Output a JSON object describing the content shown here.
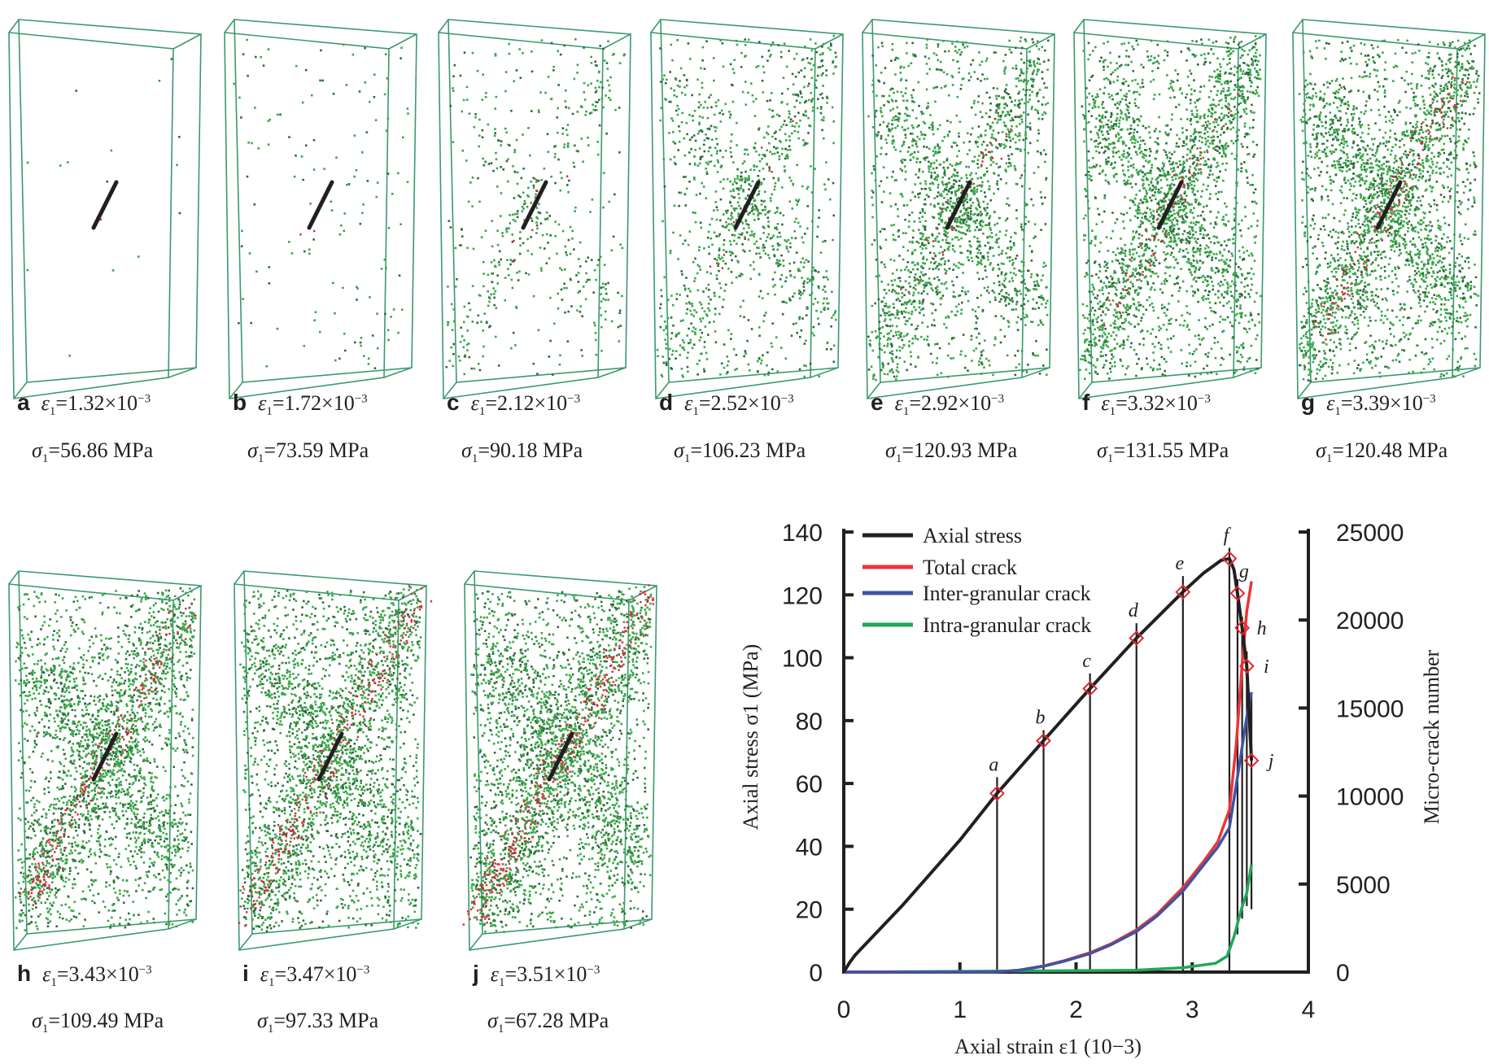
{
  "panels": [
    {
      "letter": "a",
      "strain": "1.32",
      "stress": "56.86 MPa"
    },
    {
      "letter": "b",
      "strain": "1.72",
      "stress": "73.59 MPa"
    },
    {
      "letter": "c",
      "strain": "2.12",
      "stress": "90.18 MPa"
    },
    {
      "letter": "d",
      "strain": "2.52",
      "stress": "106.23 MPa"
    },
    {
      "letter": "e",
      "strain": "2.92",
      "stress": "120.93 MPa"
    },
    {
      "letter": "f",
      "strain": "3.32",
      "stress": "131.55 MPa"
    },
    {
      "letter": "g",
      "strain": "3.39",
      "stress": "120.48 MPa"
    },
    {
      "letter": "h",
      "strain": "3.43",
      "stress": "109.49 MPa"
    },
    {
      "letter": "i",
      "strain": "3.47",
      "stress": "97.33 MPa"
    },
    {
      "letter": "j",
      "strain": "3.51",
      "stress": "67.28 MPa"
    }
  ],
  "caption_parts": {
    "eps": "ε",
    "sigma": "σ",
    "sub": "1",
    "eq": "=",
    "times10": "×10",
    "exp": "−3"
  },
  "colors": {
    "box": "#3a9a6e",
    "inter_dots": "#3aa64a",
    "intra_dots": "#d42a3a",
    "stress": "#231f20",
    "total": "#ee3338",
    "inter": "#3d54a3",
    "intra": "#22a65a",
    "marker": "#e0282e"
  },
  "chart_data": {
    "type": "line",
    "xlabel": "Axial strain ε1 (10−3)",
    "ylabel": "Axial stress σ1 (MPa)",
    "y2label": "Micro-crack number",
    "xlim": [
      0,
      4
    ],
    "ylim": [
      0,
      140
    ],
    "y2lim": [
      0,
      25000
    ],
    "xticks": [
      "0",
      "1",
      "2",
      "3",
      "4"
    ],
    "yticks": [
      "0",
      "20",
      "40",
      "60",
      "80",
      "100",
      "120",
      "140"
    ],
    "y2ticks": [
      "0",
      "5000",
      "10000",
      "15000",
      "20000",
      "25000"
    ],
    "grid": false,
    "legend_position": "top-left",
    "series": [
      {
        "name": "Axial stress",
        "axis": "left",
        "points": [
          [
            0,
            0
          ],
          [
            0.05,
            3
          ],
          [
            0.1,
            5.5
          ],
          [
            0.5,
            21
          ],
          [
            1.0,
            42
          ],
          [
            1.32,
            56.86
          ],
          [
            1.72,
            73.59
          ],
          [
            2.12,
            90.18
          ],
          [
            2.52,
            106.23
          ],
          [
            2.92,
            120.93
          ],
          [
            3.1,
            127
          ],
          [
            3.25,
            131
          ],
          [
            3.32,
            131.55
          ],
          [
            3.36,
            128
          ],
          [
            3.39,
            120.48
          ],
          [
            3.43,
            109.49
          ],
          [
            3.47,
            97.33
          ],
          [
            3.51,
            67.28
          ]
        ]
      },
      {
        "name": "Total crack",
        "axis": "right",
        "points": [
          [
            0,
            0
          ],
          [
            1.3,
            0
          ],
          [
            1.5,
            100
          ],
          [
            1.72,
            350
          ],
          [
            1.9,
            650
          ],
          [
            2.12,
            1100
          ],
          [
            2.3,
            1600
          ],
          [
            2.52,
            2400
          ],
          [
            2.7,
            3300
          ],
          [
            2.92,
            4800
          ],
          [
            3.1,
            6300
          ],
          [
            3.22,
            7400
          ],
          [
            3.32,
            9200
          ],
          [
            3.38,
            13000
          ],
          [
            3.43,
            17500
          ],
          [
            3.47,
            20500
          ],
          [
            3.51,
            22200
          ]
        ]
      },
      {
        "name": "Inter-granular crack",
        "axis": "right",
        "points": [
          [
            0,
            0
          ],
          [
            1.3,
            0
          ],
          [
            1.5,
            100
          ],
          [
            1.72,
            330
          ],
          [
            1.9,
            620
          ],
          [
            2.12,
            1050
          ],
          [
            2.3,
            1550
          ],
          [
            2.52,
            2300
          ],
          [
            2.7,
            3200
          ],
          [
            2.92,
            4600
          ],
          [
            3.1,
            6100
          ],
          [
            3.22,
            7100
          ],
          [
            3.32,
            8200
          ],
          [
            3.4,
            11500
          ],
          [
            3.47,
            14500
          ],
          [
            3.51,
            15900
          ]
        ]
      },
      {
        "name": "Intra-granular crack",
        "axis": "right",
        "points": [
          [
            0,
            0
          ],
          [
            2.5,
            100
          ],
          [
            2.92,
            250
          ],
          [
            3.2,
            500
          ],
          [
            3.3,
            900
          ],
          [
            3.36,
            2000
          ],
          [
            3.42,
            3500
          ],
          [
            3.47,
            4500
          ],
          [
            3.51,
            6100
          ]
        ]
      }
    ],
    "markers": [
      {
        "label": "a",
        "x": 1.32,
        "y": 56.86,
        "line_top": 62
      },
      {
        "label": "b",
        "x": 1.72,
        "y": 73.59,
        "line_top": 77
      },
      {
        "label": "c",
        "x": 2.12,
        "y": 90.18,
        "line_top": 95
      },
      {
        "label": "d",
        "x": 2.52,
        "y": 106.23,
        "line_top": 111
      },
      {
        "label": "e",
        "x": 2.92,
        "y": 120.93,
        "line_top": 126
      },
      {
        "label": "f",
        "x": 3.32,
        "y": 131.55,
        "line_top": 135
      },
      {
        "label": "g",
        "x": 3.39,
        "y": 120.48,
        "line_top": 125
      },
      {
        "label": "h",
        "x": 3.43,
        "y": 109.49,
        "line_top": 113
      },
      {
        "label": "i",
        "x": 3.47,
        "y": 97.33,
        "line_top": 102
      },
      {
        "label": "j",
        "x": 3.51,
        "y": 67.28,
        "line_top": 89
      }
    ]
  }
}
